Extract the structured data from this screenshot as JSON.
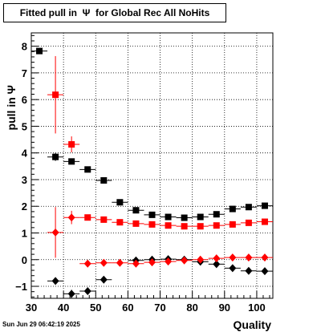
{
  "title": "Fitted pull in  Ψ  for Global Rec All NoHits",
  "datestamp": "Sun Jun 29 06:42:19 2025",
  "chart_data": {
    "type": "scatter",
    "title": "Fitted pull in  Ψ  for Global Rec All NoHits",
    "xlabel": "Quality",
    "ylabel": "pull in  Ψ",
    "xlim": [
      30,
      105
    ],
    "ylim": [
      -1.45,
      8.5
    ],
    "xticks": [
      30,
      40,
      50,
      60,
      70,
      80,
      90,
      100
    ],
    "yticks": [
      -1,
      0,
      1,
      2,
      3,
      4,
      5,
      6,
      7,
      8
    ],
    "grid": true,
    "series": [
      {
        "marker": "square",
        "color": "#000000",
        "points": [
          {
            "x": 32.5,
            "y": 7.82,
            "xerr": 2.5,
            "yerr": 0
          },
          {
            "x": 37.5,
            "y": 3.85,
            "xerr": 2.5,
            "yerr": 0.15
          },
          {
            "x": 42.5,
            "y": 3.68,
            "xerr": 2.5,
            "yerr": 0.08
          },
          {
            "x": 47.5,
            "y": 3.38,
            "xerr": 2.5,
            "yerr": 0.05
          },
          {
            "x": 52.5,
            "y": 2.97,
            "xerr": 2.5,
            "yerr": 0.04
          },
          {
            "x": 57.5,
            "y": 2.15,
            "xerr": 2.5,
            "yerr": 0.04
          },
          {
            "x": 62.5,
            "y": 1.85,
            "xerr": 2.5,
            "yerr": 0.03
          },
          {
            "x": 67.5,
            "y": 1.68,
            "xerr": 2.5,
            "yerr": 0.03
          },
          {
            "x": 72.5,
            "y": 1.6,
            "xerr": 2.5,
            "yerr": 0.03
          },
          {
            "x": 77.5,
            "y": 1.57,
            "xerr": 2.5,
            "yerr": 0.03
          },
          {
            "x": 82.5,
            "y": 1.6,
            "xerr": 2.5,
            "yerr": 0.03
          },
          {
            "x": 87.5,
            "y": 1.7,
            "xerr": 2.5,
            "yerr": 0.03
          },
          {
            "x": 92.5,
            "y": 1.9,
            "xerr": 2.5,
            "yerr": 0.03
          },
          {
            "x": 97.5,
            "y": 1.97,
            "xerr": 2.5,
            "yerr": 0.03
          },
          {
            "x": 102.5,
            "y": 2.02,
            "xerr": 2.5,
            "yerr": 0.03
          }
        ]
      },
      {
        "marker": "square",
        "color": "#ff0000",
        "points": [
          {
            "x": 37.5,
            "y": 6.18,
            "xerr": 2.5,
            "yerr": 1.45
          },
          {
            "x": 42.5,
            "y": 4.32,
            "xerr": 2.5,
            "yerr": 0.3
          },
          {
            "x": 47.5,
            "y": 1.58,
            "xerr": 2.5,
            "yerr": 0.08
          },
          {
            "x": 52.5,
            "y": 1.5,
            "xerr": 2.5,
            "yerr": 0.05
          },
          {
            "x": 57.5,
            "y": 1.4,
            "xerr": 2.5,
            "yerr": 0.04
          },
          {
            "x": 62.5,
            "y": 1.35,
            "xerr": 2.5,
            "yerr": 0.03
          },
          {
            "x": 67.5,
            "y": 1.32,
            "xerr": 2.5,
            "yerr": 0.03
          },
          {
            "x": 72.5,
            "y": 1.28,
            "xerr": 2.5,
            "yerr": 0.03
          },
          {
            "x": 77.5,
            "y": 1.25,
            "xerr": 2.5,
            "yerr": 0.03
          },
          {
            "x": 82.5,
            "y": 1.25,
            "xerr": 2.5,
            "yerr": 0.03
          },
          {
            "x": 87.5,
            "y": 1.28,
            "xerr": 2.5,
            "yerr": 0.03
          },
          {
            "x": 92.5,
            "y": 1.32,
            "xerr": 2.5,
            "yerr": 0.03
          },
          {
            "x": 97.5,
            "y": 1.38,
            "xerr": 2.5,
            "yerr": 0.03
          },
          {
            "x": 102.5,
            "y": 1.42,
            "xerr": 2.5,
            "yerr": 0.03
          }
        ]
      },
      {
        "marker": "diamond",
        "color": "#000000",
        "points": [
          {
            "x": 37.5,
            "y": -0.8,
            "xerr": 2.5,
            "yerr": 0.12
          },
          {
            "x": 42.5,
            "y": -1.28,
            "xerr": 2.5,
            "yerr": 0.15
          },
          {
            "x": 47.5,
            "y": -1.18,
            "xerr": 2.5,
            "yerr": 0.08
          },
          {
            "x": 52.5,
            "y": -0.75,
            "xerr": 2.5,
            "yerr": 0.05
          },
          {
            "x": 62.5,
            "y": -0.03,
            "xerr": 2.5,
            "yerr": 0.03
          },
          {
            "x": 67.5,
            "y": 0.0,
            "xerr": 2.5,
            "yerr": 0.03
          },
          {
            "x": 72.5,
            "y": 0.02,
            "xerr": 2.5,
            "yerr": 0.03
          },
          {
            "x": 77.5,
            "y": 0.0,
            "xerr": 2.5,
            "yerr": 0.03
          },
          {
            "x": 82.5,
            "y": -0.08,
            "xerr": 2.5,
            "yerr": 0.03
          },
          {
            "x": 87.5,
            "y": -0.17,
            "xerr": 2.5,
            "yerr": 0.03
          },
          {
            "x": 92.5,
            "y": -0.32,
            "xerr": 2.5,
            "yerr": 0.03
          },
          {
            "x": 97.5,
            "y": -0.42,
            "xerr": 2.5,
            "yerr": 0.03
          },
          {
            "x": 102.5,
            "y": -0.43,
            "xerr": 2.5,
            "yerr": 0.03
          }
        ]
      },
      {
        "marker": "diamond",
        "color": "#ff0000",
        "points": [
          {
            "x": 37.5,
            "y": 1.02,
            "xerr": 2.5,
            "yerr": 0.95
          },
          {
            "x": 42.5,
            "y": 1.58,
            "xerr": 2.5,
            "yerr": 0.25
          },
          {
            "x": 47.5,
            "y": -0.15,
            "xerr": 2.5,
            "yerr": 0.06
          },
          {
            "x": 52.5,
            "y": -0.12,
            "xerr": 2.5,
            "yerr": 0.05
          },
          {
            "x": 57.5,
            "y": -0.12,
            "xerr": 2.5,
            "yerr": 0.04
          },
          {
            "x": 62.5,
            "y": -0.15,
            "xerr": 2.5,
            "yerr": 0.03
          },
          {
            "x": 67.5,
            "y": -0.1,
            "xerr": 2.5,
            "yerr": 0.03
          },
          {
            "x": 72.5,
            "y": -0.07,
            "xerr": 2.5,
            "yerr": 0.03
          },
          {
            "x": 77.5,
            "y": -0.03,
            "xerr": 2.5,
            "yerr": 0.03
          },
          {
            "x": 82.5,
            "y": 0.0,
            "xerr": 2.5,
            "yerr": 0.03
          },
          {
            "x": 87.5,
            "y": 0.05,
            "xerr": 2.5,
            "yerr": 0.03
          },
          {
            "x": 92.5,
            "y": 0.08,
            "xerr": 2.5,
            "yerr": 0.03
          },
          {
            "x": 97.5,
            "y": 0.08,
            "xerr": 2.5,
            "yerr": 0.03
          },
          {
            "x": 102.5,
            "y": 0.08,
            "xerr": 2.5,
            "yerr": 0.03
          }
        ]
      }
    ]
  }
}
